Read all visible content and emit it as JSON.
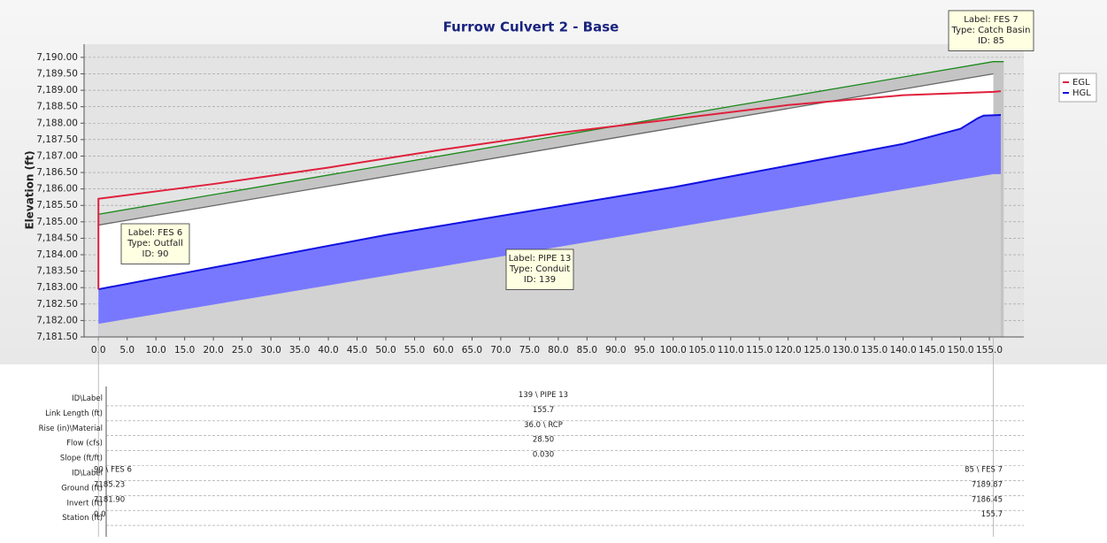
{
  "chart_data": {
    "type": "line",
    "title": "Furrow Culvert 2 - Base",
    "y_label": "Elevation (ft)",
    "xlim": [
      -2.5,
      161
    ],
    "ylim": [
      7181.5,
      7190.4
    ],
    "grid": true,
    "legend": "right",
    "xticks": [
      {
        "value": 0,
        "label": "0.0"
      },
      {
        "value": 5,
        "label": "5.0"
      },
      {
        "value": 10,
        "label": "10.0"
      },
      {
        "value": 15,
        "label": "15.0"
      },
      {
        "value": 20,
        "label": "20.0"
      },
      {
        "value": 25,
        "label": "25.0"
      },
      {
        "value": 30,
        "label": "30.0"
      },
      {
        "value": 35,
        "label": "35.0"
      },
      {
        "value": 40,
        "label": "40.0"
      },
      {
        "value": 45,
        "label": "45.0"
      },
      {
        "value": 50,
        "label": "50.0"
      },
      {
        "value": 55,
        "label": "55.0"
      },
      {
        "value": 60,
        "label": "60.0"
      },
      {
        "value": 65,
        "label": "65.0"
      },
      {
        "value": 70,
        "label": "70.0"
      },
      {
        "value": 75,
        "label": "75.0"
      },
      {
        "value": 80,
        "label": "80.0"
      },
      {
        "value": 85,
        "label": "85.0"
      },
      {
        "value": 90,
        "label": "90.0"
      },
      {
        "value": 95,
        "label": "95.0"
      },
      {
        "value": 100,
        "label": "100.0"
      },
      {
        "value": 105,
        "label": "105.0"
      },
      {
        "value": 110,
        "label": "110.0"
      },
      {
        "value": 115,
        "label": "115.0"
      },
      {
        "value": 120,
        "label": "120.0"
      },
      {
        "value": 125,
        "label": "125.0"
      },
      {
        "value": 130,
        "label": "130.0"
      },
      {
        "value": 135,
        "label": "135.0"
      },
      {
        "value": 140,
        "label": "140.0"
      },
      {
        "value": 145,
        "label": "145.0"
      },
      {
        "value": 150,
        "label": "150.0"
      },
      {
        "value": 155,
        "label": "155.0"
      }
    ],
    "yticks": [
      {
        "value": 7181.5,
        "label": "7,181.50"
      },
      {
        "value": 7182,
        "label": "7,182.00"
      },
      {
        "value": 7182.5,
        "label": "7,182.50"
      },
      {
        "value": 7183,
        "label": "7,183.00"
      },
      {
        "value": 7183.5,
        "label": "7,183.50"
      },
      {
        "value": 7184,
        "label": "7,184.00"
      },
      {
        "value": 7184.5,
        "label": "7,184.50"
      },
      {
        "value": 7185,
        "label": "7,185.00"
      },
      {
        "value": 7185.5,
        "label": "7,185.50"
      },
      {
        "value": 7186,
        "label": "7,186.00"
      },
      {
        "value": 7186.5,
        "label": "7,186.50"
      },
      {
        "value": 7187,
        "label": "7,187.00"
      },
      {
        "value": 7187.5,
        "label": "7,187.50"
      },
      {
        "value": 7188,
        "label": "7,188.00"
      },
      {
        "value": 7188.5,
        "label": "7,188.50"
      },
      {
        "value": 7189,
        "label": "7,189.00"
      },
      {
        "value": 7189.5,
        "label": "7,189.50"
      },
      {
        "value": 7190,
        "label": "7,190.00"
      }
    ],
    "series": [
      {
        "color": "#1a8a1a",
        "fill": "#c4c4c4",
        "x": [
          0,
          155.7,
          157.5
        ],
        "values": [
          7185.23,
          7189.87,
          7189.87
        ]
      },
      {
        "color": "#666666",
        "fill": "#ffffff",
        "x": [
          0,
          155.7
        ],
        "values": [
          7184.9,
          7189.5
        ]
      },
      {
        "name": "HGL",
        "color": "#1010e0",
        "fill": "#7878ff",
        "x": [
          0,
          50,
          100,
          140,
          150,
          153,
          154,
          157
        ],
        "values": [
          7182.95,
          7184.6,
          7186.05,
          7187.37,
          7187.83,
          7188.15,
          7188.23,
          7188.25
        ]
      },
      {
        "fill": "#d2d2d2",
        "x": [
          0,
          155.7,
          157
        ],
        "values": [
          7181.9,
          7186.45,
          7186.45
        ]
      },
      {
        "name": "EGL",
        "color": "#e0203c",
        "x": [
          0,
          0,
          20,
          40,
          60,
          80,
          100,
          120,
          140,
          155.7,
          157
        ],
        "values": [
          7182.95,
          7185.7,
          7186.15,
          7186.65,
          7187.2,
          7187.7,
          7188.12,
          7188.55,
          7188.85,
          7188.95,
          7188.97
        ]
      }
    ],
    "annotations": [
      {
        "lines": [
          "Label: FES 6",
          "Type: Outfall",
          "ID: 90"
        ]
      },
      {
        "lines": [
          "Label: PIPE 13",
          "Type: Conduit",
          "ID: 139"
        ]
      },
      {
        "lines": [
          "Label: FES 7",
          "Type: Catch Basin",
          "ID: 85"
        ]
      }
    ]
  },
  "table": {
    "link_rows": [
      {
        "label": "ID\\Label",
        "value": "139 \\ PIPE 13"
      },
      {
        "label": "Link Length (ft)",
        "value": "155.7"
      },
      {
        "label": "Rise (in)\\Material",
        "value": "36.0 \\ RCP"
      },
      {
        "label": "Flow (cfs)",
        "value": "28.50"
      },
      {
        "label": "Slope (ft/ft)",
        "value": "0.030"
      }
    ],
    "node_rows": [
      {
        "label": "ID\\Label",
        "start": "90 \\ FES 6",
        "end": "85 \\ FES 7"
      },
      {
        "label": "Ground (ft)",
        "start": "7185.23",
        "end": "7189.87"
      },
      {
        "label": "Invert (ft)",
        "start": "7181.90",
        "end": "7186.45"
      },
      {
        "label": "Station (ft)",
        "start": "0.0",
        "end": "155.7"
      }
    ]
  }
}
